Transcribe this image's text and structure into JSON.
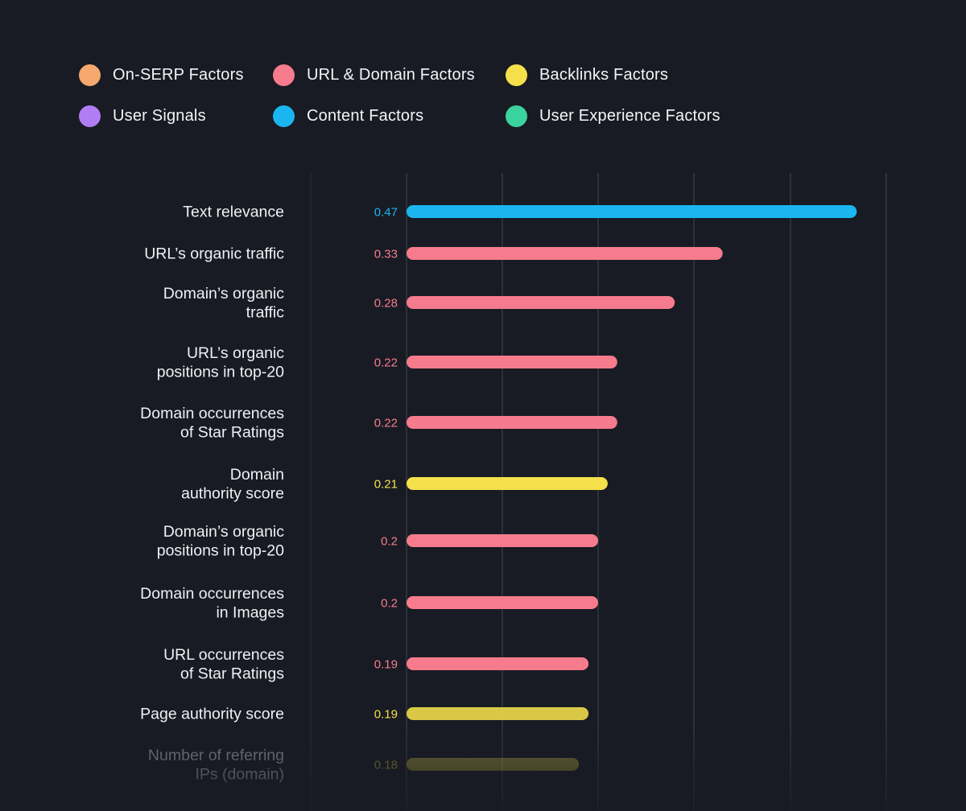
{
  "legend": [
    {
      "label": "On-SERP Factors",
      "color": "#f6a86f"
    },
    {
      "label": "URL & Domain Factors",
      "color": "#f67b8c"
    },
    {
      "label": "Backlinks Factors",
      "color": "#f4e04a"
    },
    {
      "label": "User Signals",
      "color": "#b17df5"
    },
    {
      "label": "Content Factors",
      "color": "#1bb5f0"
    },
    {
      "label": "User Experience Factors",
      "color": "#3bd39d"
    }
  ],
  "chart_data": {
    "type": "bar",
    "orientation": "horizontal",
    "title": "",
    "xlabel": "",
    "ylabel": "",
    "xlim": [
      0,
      0.5
    ],
    "grid": true,
    "legend_position": "top",
    "categories": [
      [
        "Text relevance"
      ],
      [
        "URL’s organic traffic"
      ],
      [
        "Domain’s organic",
        "traffic"
      ],
      [
        "URL’s organic",
        "positions in top-20"
      ],
      [
        "Domain occurrences",
        "of Star Ratings"
      ],
      [
        "Domain",
        "authority score"
      ],
      [
        "Domain’s organic",
        "positions in top-20"
      ],
      [
        "Domain occurrences",
        "in Images"
      ],
      [
        "URL occurrences",
        "of Star Ratings"
      ],
      [
        "Page authority score"
      ],
      [
        "Number of referring",
        "IPs (domain)"
      ]
    ],
    "values": [
      0.47,
      0.33,
      0.28,
      0.22,
      0.22,
      0.21,
      0.2,
      0.2,
      0.19,
      0.19,
      0.18
    ],
    "value_labels": [
      "0.47",
      "0.33",
      "0.28",
      "0.22",
      "0.22",
      "0.21",
      "0.2",
      "0.2",
      "0.19",
      "0.19",
      "0.18"
    ],
    "factor_groups": [
      "Content Factors",
      "URL & Domain Factors",
      "URL & Domain Factors",
      "URL & Domain Factors",
      "URL & Domain Factors",
      "Backlinks Factors",
      "URL & Domain Factors",
      "URL & Domain Factors",
      "URL & Domain Factors",
      "Backlinks Factors",
      "Backlinks Factors"
    ]
  }
}
